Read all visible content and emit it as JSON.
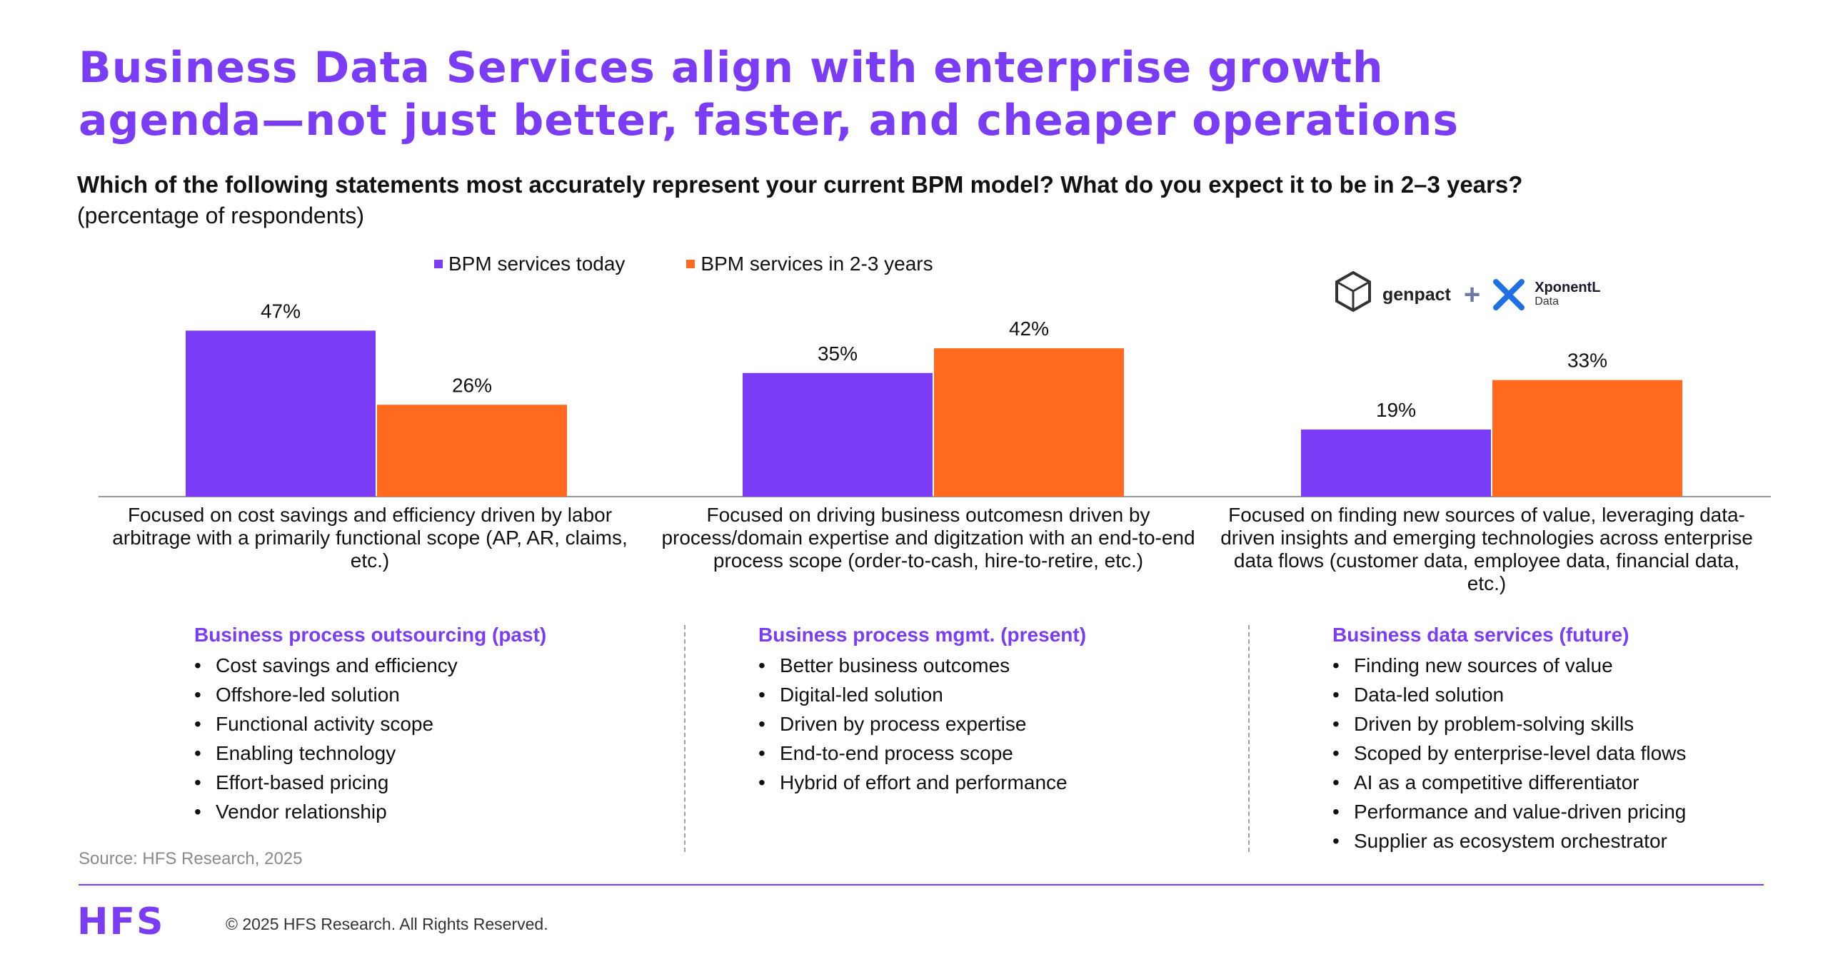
{
  "header": {
    "title_line1": "Business Data Services align with enterprise growth",
    "title_line2": "agenda—not just better, faster, and cheaper operations",
    "question": "Which of the following statements most accurately represent your current BPM model? What do you expect it to be in 2–3 years?",
    "subquestion": "(percentage of respondents)"
  },
  "colors": {
    "purple": "#7a3cf5",
    "orange": "#ff6a1f",
    "accent": "#7a3cf5"
  },
  "logos": {
    "genpact": "genpact",
    "xponent_line1": "XponentL",
    "xponent_line2": "Data"
  },
  "chart_data": {
    "type": "bar",
    "categories": [
      "Focused on cost savings and efficiency driven by labor arbitrage with a primarily functional scope (AP, AR, claims, etc.)",
      "Focused on driving business outcomesn driven by process/domain expertise and digitzation with an end-to-end process scope (order-to-cash, hire-to-retire, etc.)",
      "Focused on finding new sources of value, leveraging data-driven insights and emerging technologies across enterprise data flows (customer data, employee data, financial data, etc.)"
    ],
    "series": [
      {
        "name": "BPM services today",
        "values": [
          47,
          35,
          19
        ],
        "labels": [
          "47%",
          "35%",
          "19%"
        ]
      },
      {
        "name": "BPM services in 2-3 years",
        "values": [
          26,
          42,
          33
        ],
        "labels": [
          "26%",
          "42%",
          "33%"
        ]
      }
    ],
    "ylim": [
      0,
      50
    ],
    "grid": false,
    "legend": "top",
    "title": "",
    "xlabel": "",
    "ylabel": ""
  },
  "columns": [
    {
      "title": "Business process outsourcing (past)",
      "items": [
        "Cost savings and efficiency",
        "Offshore-led solution",
        "Functional activity scope",
        "Enabling technology",
        "Effort-based pricing",
        "Vendor relationship"
      ]
    },
    {
      "title": "Business process mgmt. (present)",
      "items": [
        "Better business outcomes",
        "Digital-led solution",
        "Driven by process expertise",
        "End-to-end process scope",
        "Hybrid of effort and performance"
      ]
    },
    {
      "title": "Business data services (future)",
      "items": [
        "Finding new sources of value",
        "Data-led solution",
        "Driven by problem-solving skills",
        "Scoped by enterprise-level data flows",
        "AI as a competitive differentiator",
        "Performance and value-driven pricing",
        "Supplier as ecosystem orchestrator"
      ]
    }
  ],
  "footer": {
    "source": "Source: HFS Research, 2025",
    "brand": "HFS",
    "copyright": "© 2025 HFS Research. All Rights Reserved."
  }
}
